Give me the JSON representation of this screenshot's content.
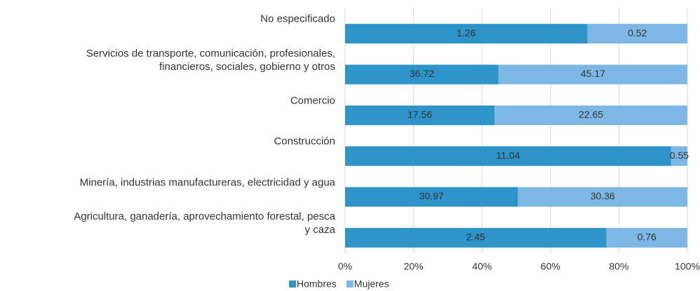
{
  "chart_data": {
    "type": "bar",
    "orientation": "horizontal",
    "stacking": "percent",
    "categories": [
      "No especificado",
      "Servicios de transporte, comunicación, profesionales,\nfinancieros, sociales, gobierno y otros",
      "Comercio",
      "Construcción",
      "Minería, industrias manufactureras, electricidad y agua",
      "Agricultura, ganadería, aprovechamiento forestal, pesca\ny caza"
    ],
    "series": [
      {
        "name": "Hombres",
        "color": "#2e93c9",
        "values": [
          1.26,
          36.72,
          17.56,
          11.04,
          30.97,
          2.45
        ]
      },
      {
        "name": "Mujeres",
        "color": "#7db7e3",
        "values": [
          0.52,
          45.17,
          22.65,
          0.55,
          30.36,
          0.76
        ]
      }
    ],
    "xlim": [
      0,
      100
    ],
    "xticks": [
      {
        "value": 0,
        "label": "0%"
      },
      {
        "value": 20,
        "label": "20%"
      },
      {
        "value": 40,
        "label": "40%"
      },
      {
        "value": 60,
        "label": "60%"
      },
      {
        "value": 80,
        "label": "80%"
      },
      {
        "value": 100,
        "label": "100%"
      }
    ],
    "grid": true,
    "legend": "bottom"
  }
}
